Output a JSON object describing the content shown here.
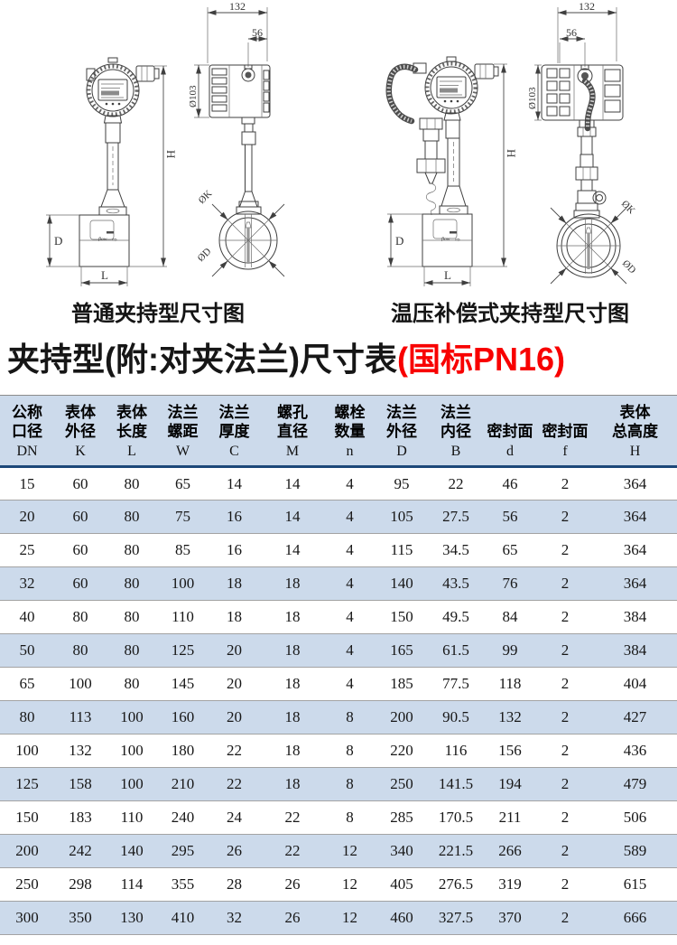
{
  "diagrams": {
    "left": {
      "caption": "普通夹持型尺寸图",
      "dims": {
        "top_width": "132",
        "head_width": "56",
        "head_dia": "Ø103",
        "total_height": "H",
        "body_height": "D",
        "body_length": "L",
        "bolt_circle": "ØK",
        "flange_od": "ØD",
        "flow": "flow"
      }
    },
    "right": {
      "caption": "温压补偿式夹持型尺寸图",
      "dims": {
        "top_width": "132",
        "head_width": "56",
        "head_dia": "Ø103",
        "total_height": "H",
        "body_height": "D",
        "body_length": "L",
        "bolt_circle": "ØK",
        "flange_od": "ØD",
        "flow": "flow"
      }
    }
  },
  "title": {
    "main": "夹持型(附:对夹法兰)尺寸表",
    "standard": "(国标PN16)"
  },
  "table": {
    "headers": [
      {
        "l1": "公称",
        "l2": "口径",
        "sym": "DN"
      },
      {
        "l1": "表体",
        "l2": "外径",
        "sym": "K"
      },
      {
        "l1": "表体",
        "l2": "长度",
        "sym": "L"
      },
      {
        "l1": "法兰",
        "l2": "螺距",
        "sym": "W"
      },
      {
        "l1": "法兰",
        "l2": "厚度",
        "sym": "C"
      },
      {
        "l1": "螺孔",
        "l2": "直径",
        "sym": "M"
      },
      {
        "l1": "螺栓",
        "l2": "数量",
        "sym": "n"
      },
      {
        "l1": "法兰",
        "l2": "外径",
        "sym": "D"
      },
      {
        "l1": "法兰",
        "l2": "内径",
        "sym": "B"
      },
      {
        "l1": "",
        "l2": "密封面",
        "sym": "d"
      },
      {
        "l1": "",
        "l2": "密封面",
        "sym": "f"
      },
      {
        "l1": "表体",
        "l2": "总高度",
        "sym": "H"
      }
    ],
    "rows": [
      [
        "15",
        "60",
        "80",
        "65",
        "14",
        "14",
        "4",
        "95",
        "22",
        "46",
        "2",
        "364"
      ],
      [
        "20",
        "60",
        "80",
        "75",
        "16",
        "14",
        "4",
        "105",
        "27.5",
        "56",
        "2",
        "364"
      ],
      [
        "25",
        "60",
        "80",
        "85",
        "16",
        "14",
        "4",
        "115",
        "34.5",
        "65",
        "2",
        "364"
      ],
      [
        "32",
        "60",
        "80",
        "100",
        "18",
        "18",
        "4",
        "140",
        "43.5",
        "76",
        "2",
        "364"
      ],
      [
        "40",
        "80",
        "80",
        "110",
        "18",
        "18",
        "4",
        "150",
        "49.5",
        "84",
        "2",
        "384"
      ],
      [
        "50",
        "80",
        "80",
        "125",
        "20",
        "18",
        "4",
        "165",
        "61.5",
        "99",
        "2",
        "384"
      ],
      [
        "65",
        "100",
        "80",
        "145",
        "20",
        "18",
        "4",
        "185",
        "77.5",
        "118",
        "2",
        "404"
      ],
      [
        "80",
        "113",
        "100",
        "160",
        "20",
        "18",
        "8",
        "200",
        "90.5",
        "132",
        "2",
        "427"
      ],
      [
        "100",
        "132",
        "100",
        "180",
        "22",
        "18",
        "8",
        "220",
        "116",
        "156",
        "2",
        "436"
      ],
      [
        "125",
        "158",
        "100",
        "210",
        "22",
        "18",
        "8",
        "250",
        "141.5",
        "194",
        "2",
        "479"
      ],
      [
        "150",
        "183",
        "110",
        "240",
        "24",
        "22",
        "8",
        "285",
        "170.5",
        "211",
        "2",
        "506"
      ],
      [
        "200",
        "242",
        "140",
        "295",
        "26",
        "22",
        "12",
        "340",
        "221.5",
        "266",
        "2",
        "589"
      ],
      [
        "250",
        "298",
        "114",
        "355",
        "28",
        "26",
        "12",
        "405",
        "276.5",
        "319",
        "2",
        "615"
      ],
      [
        "300",
        "350",
        "130",
        "410",
        "32",
        "26",
        "12",
        "460",
        "327.5",
        "370",
        "2",
        "666"
      ]
    ]
  },
  "colors": {
    "accent_red": "#f80000",
    "table_stripe": "#ccdaeb",
    "header_rule_navy": "#1d4879",
    "row_rule_gray": "#a3a3a3",
    "drawing_stroke": "#3f3f3f"
  }
}
